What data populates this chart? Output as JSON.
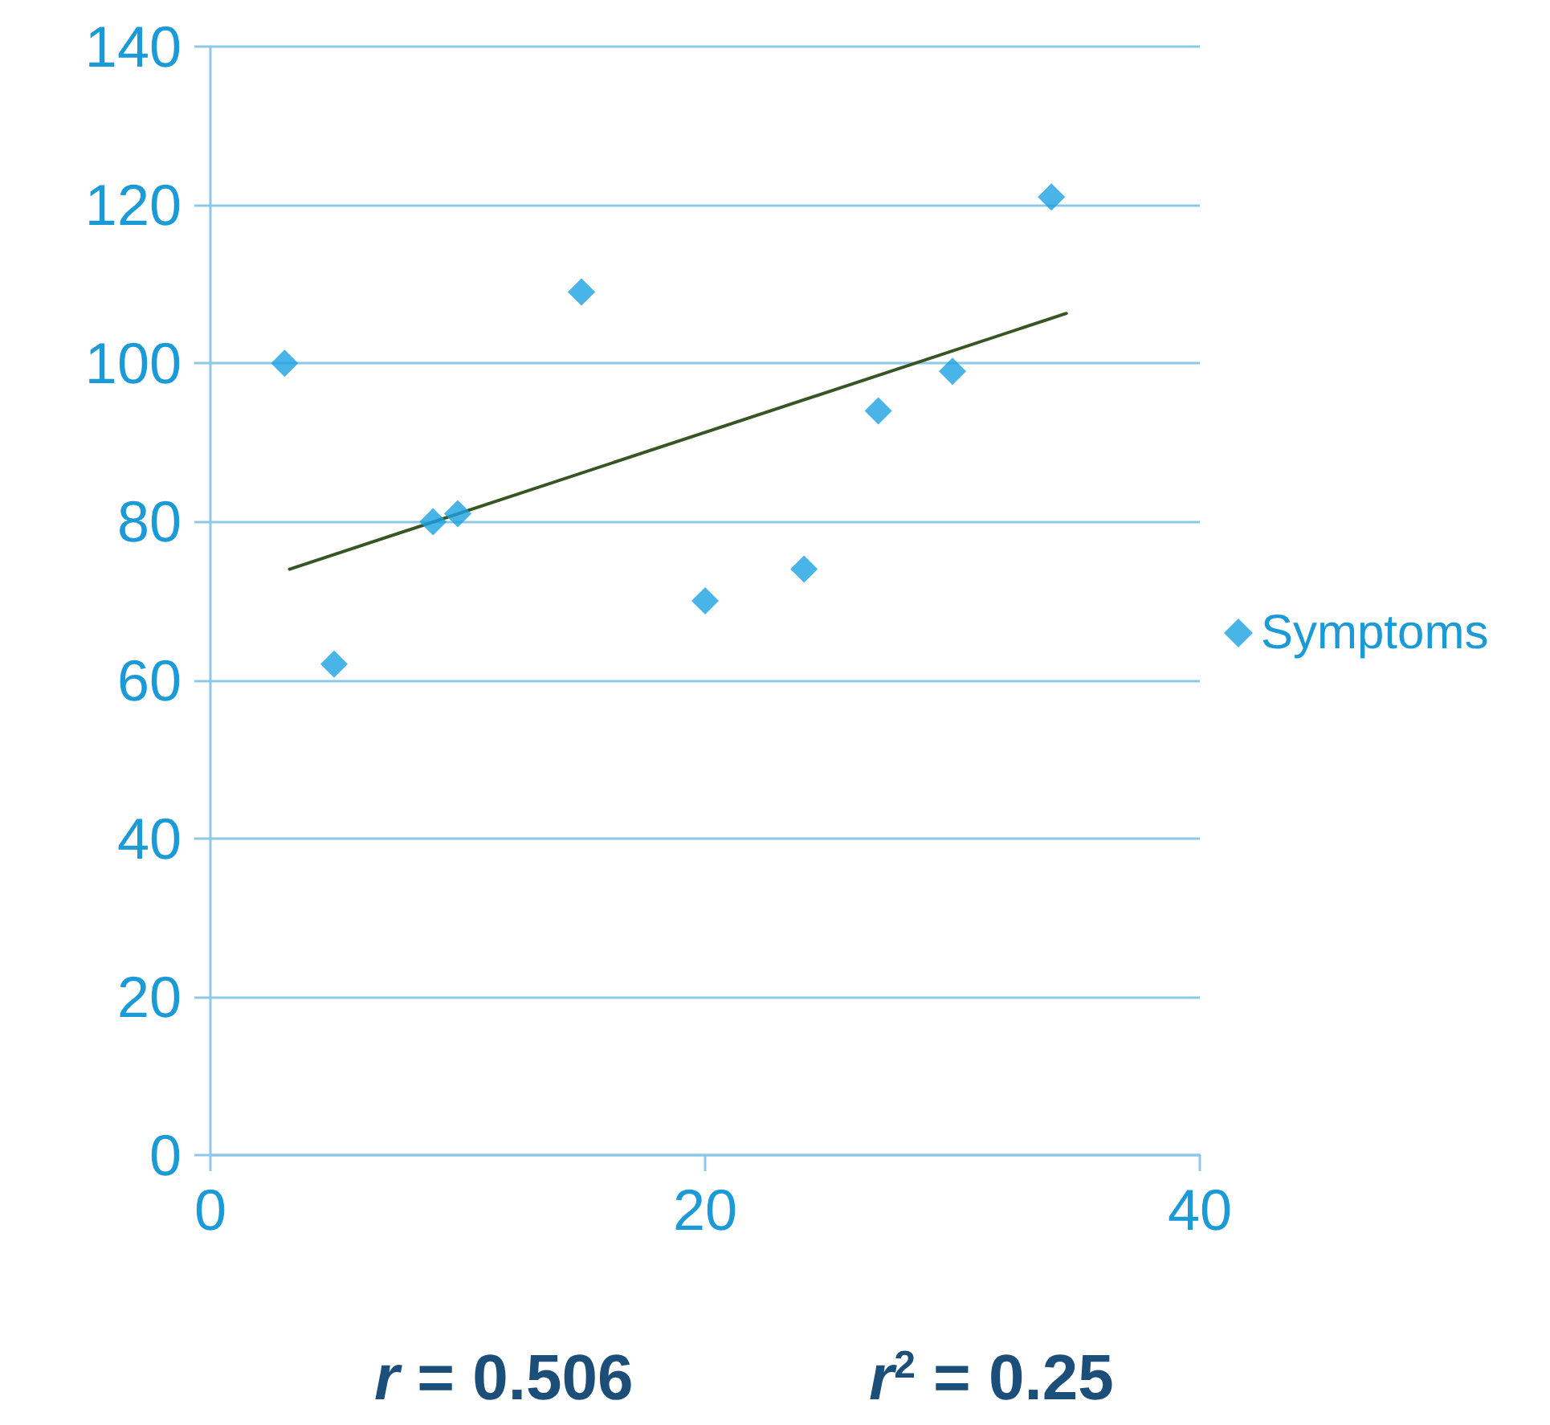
{
  "chart_data": {
    "type": "scatter",
    "xlim": [
      0,
      40
    ],
    "xticks": [
      0,
      20,
      40
    ],
    "ylim": [
      0,
      140
    ],
    "yticks": [
      0,
      20,
      40,
      60,
      80,
      100,
      120,
      140
    ],
    "series": [
      {
        "name": "Symptoms",
        "marker": "diamond",
        "color": "#1ba1e2",
        "x": [
          3,
          5,
          9,
          10,
          15,
          20,
          24,
          27,
          30,
          34
        ],
        "values": [
          100,
          62,
          80,
          81,
          109,
          70,
          74,
          94,
          99,
          121
        ]
      },
      {
        "type": "line",
        "marker": "none",
        "color": "#375623",
        "x": [
          3.2,
          34.6
        ],
        "values": [
          74,
          106.3
        ]
      }
    ],
    "grid": "y",
    "legend": "right",
    "annotations": [
      "r = 0.506",
      "r$^{2}$ = 0.25"
    ]
  }
}
